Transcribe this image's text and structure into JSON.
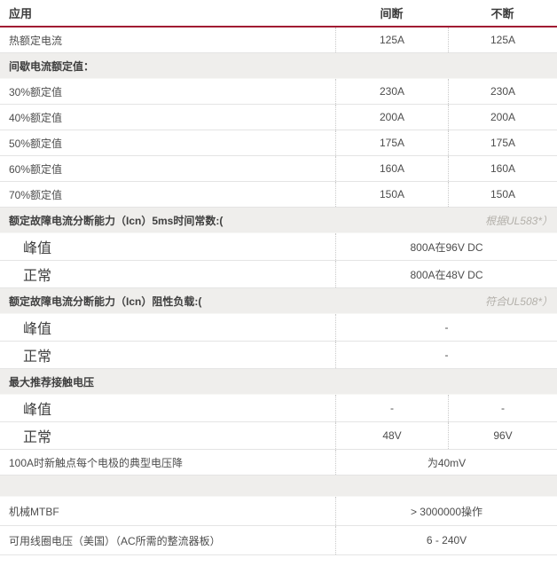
{
  "colors": {
    "header_rule_red": "#a11a32",
    "section_background": "#efeeec",
    "body_text": "#4d4d4d",
    "note_text": "#b3b0aa",
    "row_border": "#e4e4e4",
    "dotted_separator": "#c9c9c9"
  },
  "table": {
    "header": {
      "col_label": "应用",
      "col1": "间断",
      "col2": "不断"
    },
    "rows": [
      {
        "type": "row",
        "label": "热额定电流",
        "values": [
          "125A",
          "125A"
        ]
      },
      {
        "type": "section",
        "label": "间歇电流额定值："
      },
      {
        "type": "row",
        "label": "30%额定值",
        "values": [
          "230A",
          "230A"
        ]
      },
      {
        "type": "row",
        "label": "40%额定值",
        "values": [
          "200A",
          "200A"
        ]
      },
      {
        "type": "row",
        "label": "50%额定值",
        "values": [
          "175A",
          "175A"
        ]
      },
      {
        "type": "row",
        "label": "60%额定值",
        "values": [
          "160A",
          "160A"
        ]
      },
      {
        "type": "row",
        "label": "70%额定值",
        "values": [
          "150A",
          "150A"
        ]
      },
      {
        "type": "section",
        "label": "额定故障电流分断能力（Icn）5ms时间常数:(",
        "note": "根据UL583*）"
      },
      {
        "type": "row",
        "big": true,
        "label": "峰值",
        "span": "800A在96V DC"
      },
      {
        "type": "row",
        "big": true,
        "label": "正常",
        "span": "800A在48V DC"
      },
      {
        "type": "section",
        "label": "额定故障电流分断能力（Icn）阻性负载:(",
        "note": "符合UL508*）"
      },
      {
        "type": "row",
        "big": true,
        "label": "峰值",
        "span": "-"
      },
      {
        "type": "row",
        "big": true,
        "label": "正常",
        "span": "-"
      },
      {
        "type": "section",
        "label": "最大推荐接触电压"
      },
      {
        "type": "row",
        "big": true,
        "label": "峰值",
        "values": [
          "-",
          "-"
        ]
      },
      {
        "type": "row",
        "big": true,
        "label": "正常",
        "values": [
          "48V",
          "96V"
        ]
      },
      {
        "type": "row",
        "label": "100A时新触点每个电极的典型电压降",
        "span": "为40mV"
      },
      {
        "type": "empty-section"
      },
      {
        "type": "row",
        "tall": true,
        "label": "机械MTBF",
        "span": "> 3000000操作"
      },
      {
        "type": "row",
        "tall": true,
        "label": "可用线圈电压（美国）（AC所需的整流器板）",
        "span": "6 - 240V"
      }
    ]
  }
}
